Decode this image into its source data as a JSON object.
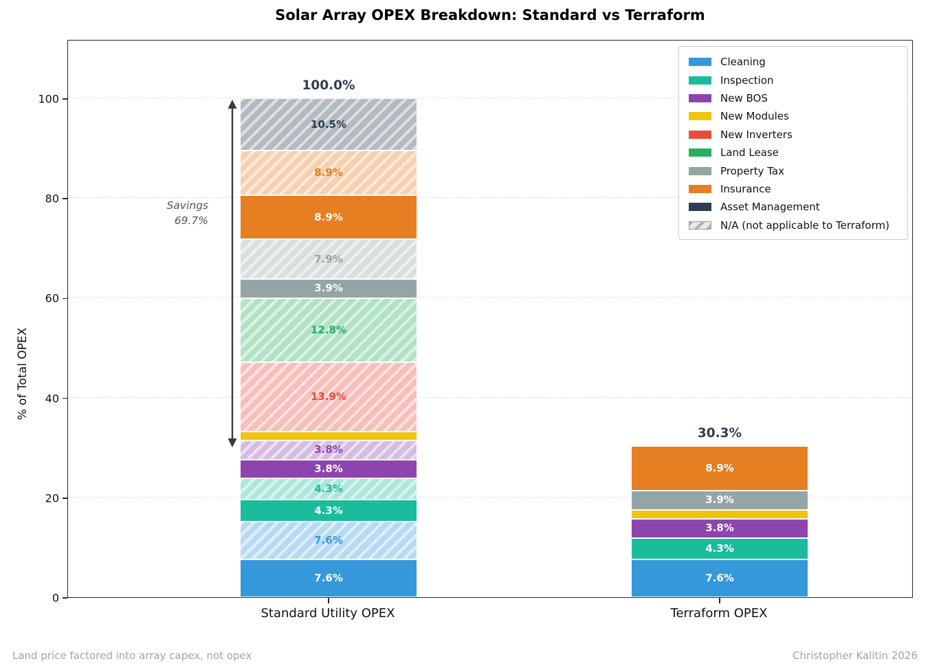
{
  "title": "Solar Array OPEX Breakdown: Standard vs Terraform",
  "ylabel": "% of Total OPEX",
  "footer_left": "Land price factored into array capex, not opex",
  "footer_right": "Christopher Kalitin 2026",
  "colors": {
    "Cleaning": "#3498db",
    "Inspection": "#1abc9c",
    "New BOS": "#8e44ad",
    "New Modules": "#f1c40f",
    "New Inverters": "#e74c3c",
    "Land Lease": "#27ae60",
    "Property Tax": "#95a5a6",
    "Insurance": "#e67e22",
    "Asset Management": "#2c3e50",
    "na_swatch_bg": "#e8e8e8",
    "na_swatch_stripe": "#b0b0b0",
    "total_label": "#333d48",
    "spine": "#262626",
    "gridline": "#dedede",
    "annotation_text": "#555555",
    "arrow": "#3a3a3a",
    "footer_text": "#a3a3a3"
  },
  "legend": {
    "items": [
      {
        "label": "Cleaning",
        "color": "#3498db",
        "hatched": false
      },
      {
        "label": "Inspection",
        "color": "#1abc9c",
        "hatched": false
      },
      {
        "label": "New BOS",
        "color": "#8e44ad",
        "hatched": false
      },
      {
        "label": "New Modules",
        "color": "#f1c40f",
        "hatched": false
      },
      {
        "label": "New Inverters",
        "color": "#e74c3c",
        "hatched": false
      },
      {
        "label": "Land Lease",
        "color": "#27ae60",
        "hatched": false
      },
      {
        "label": "Property Tax",
        "color": "#95a5a6",
        "hatched": false
      },
      {
        "label": "Insurance",
        "color": "#e67e22",
        "hatched": false
      },
      {
        "label": "Asset Management",
        "color": "#2c3e50",
        "hatched": false
      },
      {
        "label": "N/A (not applicable to Terraform)",
        "color": "#cccccc",
        "hatched": true
      }
    ]
  },
  "annotation": {
    "line1": "Savings",
    "line2": "69.7%",
    "from_pct": 30.3,
    "to_pct": 100
  },
  "chart_data": {
    "type": "bar",
    "stacked": true,
    "grid": "dashed-horizontal",
    "legend_position": "upper-right",
    "ylabel": "% of Total OPEX",
    "ylim": [
      0,
      112
    ],
    "yticks": [
      0,
      20,
      40,
      60,
      80,
      100
    ],
    "categories": [
      "Standard Utility OPEX",
      "Terraform OPEX"
    ],
    "bars": [
      {
        "category": "Standard Utility OPEX",
        "total": 100.0,
        "total_label": "100.0%",
        "segments": [
          {
            "name": "Cleaning",
            "value": 7.6,
            "label": "7.6%",
            "hatched": false
          },
          {
            "name": "Cleaning",
            "value": 7.6,
            "label": "7.6%",
            "hatched": true
          },
          {
            "name": "Inspection",
            "value": 4.3,
            "label": "4.3%",
            "hatched": false
          },
          {
            "name": "Inspection",
            "value": 4.3,
            "label": "4.3%",
            "hatched": true
          },
          {
            "name": "New BOS",
            "value": 3.8,
            "label": "3.8%",
            "hatched": false
          },
          {
            "name": "New BOS",
            "value": 3.8,
            "label": "3.8%",
            "hatched": true
          },
          {
            "name": "New Modules",
            "value": 1.8,
            "label": "",
            "hatched": false
          },
          {
            "name": "New Inverters",
            "value": 13.9,
            "label": "13.9%",
            "hatched": true
          },
          {
            "name": "Land Lease",
            "value": 12.8,
            "label": "12.8%",
            "hatched": true
          },
          {
            "name": "Property Tax",
            "value": 3.9,
            "label": "3.9%",
            "hatched": false
          },
          {
            "name": "Property Tax",
            "value": 7.9,
            "label": "7.9%",
            "hatched": true
          },
          {
            "name": "Insurance",
            "value": 8.9,
            "label": "8.9%",
            "hatched": false
          },
          {
            "name": "Insurance",
            "value": 8.9,
            "label": "8.9%",
            "hatched": true
          },
          {
            "name": "Asset Management",
            "value": 10.5,
            "label": "10.5%",
            "hatched": true
          }
        ]
      },
      {
        "category": "Terraform OPEX",
        "total": 30.3,
        "total_label": "30.3%",
        "segments": [
          {
            "name": "Cleaning",
            "value": 7.6,
            "label": "7.6%",
            "hatched": false
          },
          {
            "name": "Inspection",
            "value": 4.3,
            "label": "4.3%",
            "hatched": false
          },
          {
            "name": "New BOS",
            "value": 3.8,
            "label": "3.8%",
            "hatched": false
          },
          {
            "name": "New Modules",
            "value": 1.8,
            "label": "",
            "hatched": false
          },
          {
            "name": "Property Tax",
            "value": 3.9,
            "label": "3.9%",
            "hatched": false
          },
          {
            "name": "Insurance",
            "value": 8.9,
            "label": "8.9%",
            "hatched": false
          }
        ]
      }
    ]
  }
}
